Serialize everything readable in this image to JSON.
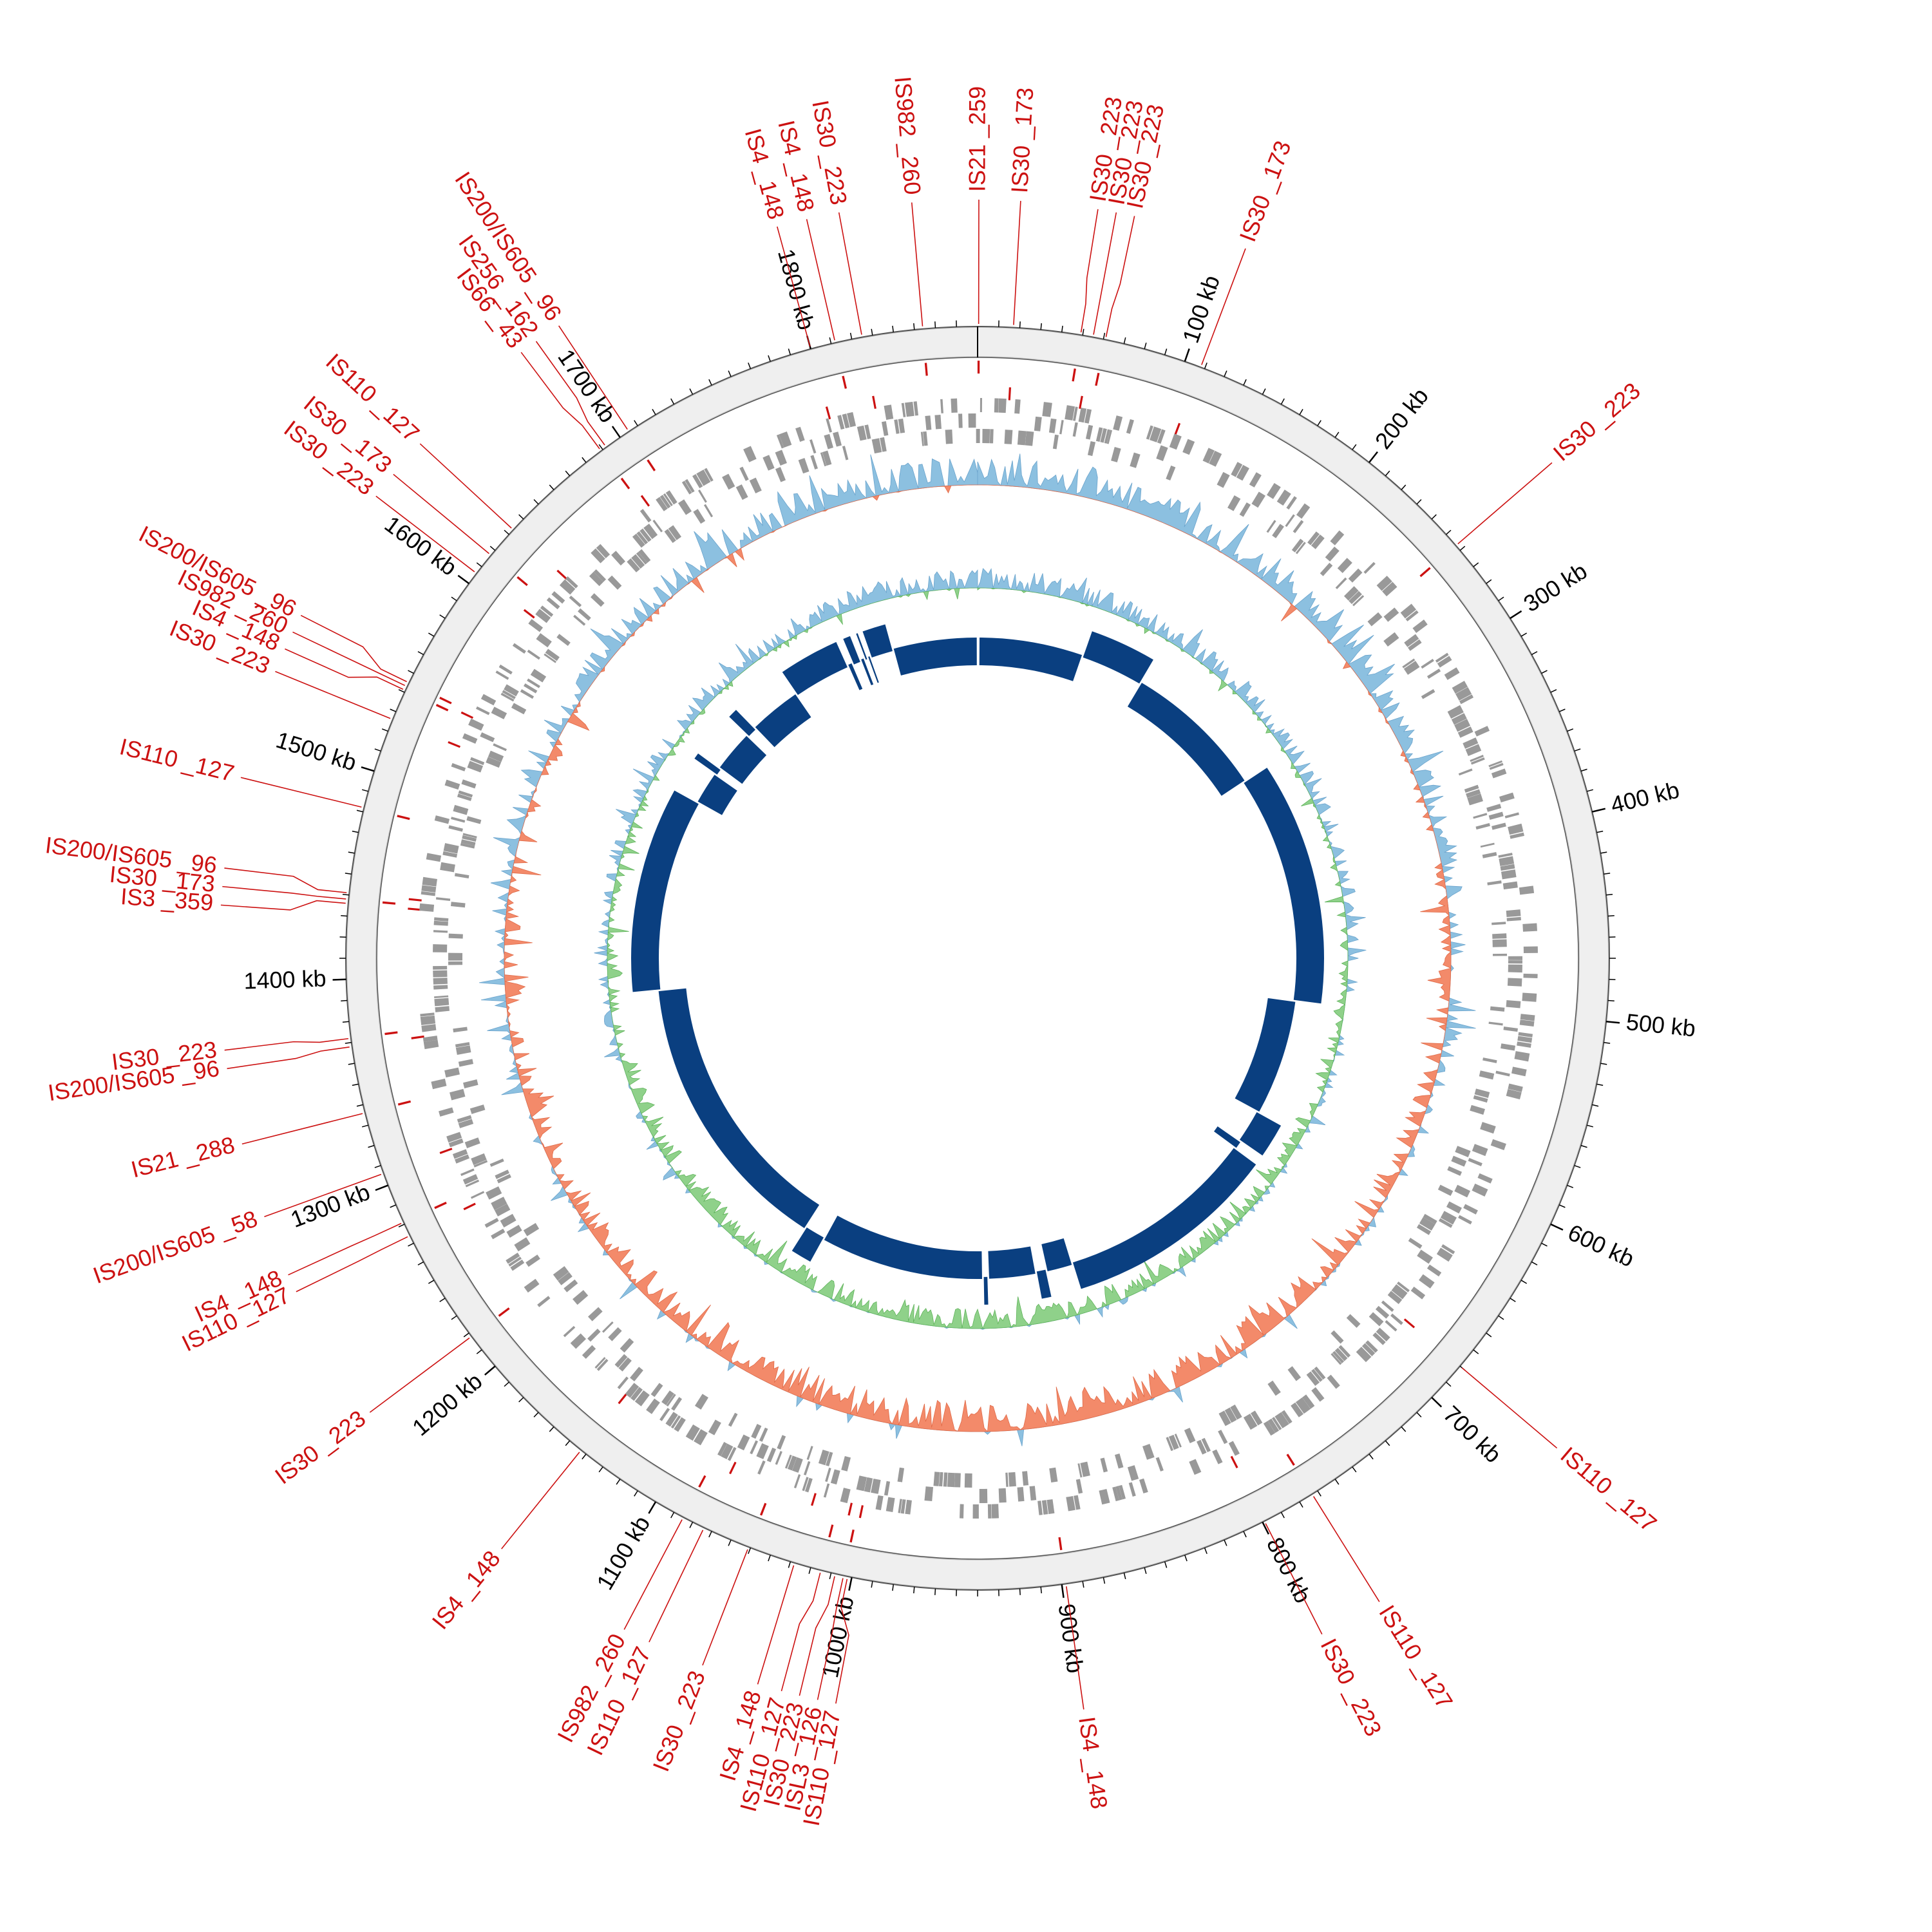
{
  "genome": {
    "length_kb": 1880,
    "ticks": [
      {
        "kb": 100,
        "label": "100 kb"
      },
      {
        "kb": 200,
        "label": "200 kb"
      },
      {
        "kb": 300,
        "label": "300 kb"
      },
      {
        "kb": 400,
        "label": "400 kb"
      },
      {
        "kb": 500,
        "label": "500 kb"
      },
      {
        "kb": 600,
        "label": "600 kb"
      },
      {
        "kb": 700,
        "label": "700 kb"
      },
      {
        "kb": 800,
        "label": "800 kb"
      },
      {
        "kb": 900,
        "label": "900 kb"
      },
      {
        "kb": 1000,
        "label": "1000 kb"
      },
      {
        "kb": 1100,
        "label": "1100 kb"
      },
      {
        "kb": 1200,
        "label": "1200 kb"
      },
      {
        "kb": 1300,
        "label": "1300 kb"
      },
      {
        "kb": 1400,
        "label": "1400 kb"
      },
      {
        "kb": 1500,
        "label": "1500 kb"
      },
      {
        "kb": 1600,
        "label": "1600 kb"
      },
      {
        "kb": 1700,
        "label": "1700 kb"
      },
      {
        "kb": 1800,
        "label": "1800 kb"
      }
    ]
  },
  "colors": {
    "is_element": "#cc1111",
    "gene_track": "#999999",
    "gc_high": "#8cc0e0",
    "gc_low": "#f38a6a",
    "skew_pos": "#8cc0e0",
    "skew_neg": "#8fd18a",
    "scaffold": "#0a3f80",
    "ruler_band": "#efefef"
  },
  "is_elements": [
    {
      "kb": 0.5,
      "label": "IS21 _259"
    },
    {
      "kb": 17,
      "label": "IS30 _173"
    },
    {
      "kb": 49,
      "label": "IS30 _223"
    },
    {
      "kb": 55,
      "label": "IS30 _223"
    },
    {
      "kb": 61,
      "label": "IS30 _223"
    },
    {
      "kb": 108,
      "label": "IS30 _173"
    },
    {
      "kb": 257,
      "label": "IS30 _223"
    },
    {
      "kb": 680,
      "label": "IS110 _127"
    },
    {
      "kb": 773,
      "label": "IS110 _127"
    },
    {
      "kb": 799,
      "label": "IS30 _223"
    },
    {
      "kb": 898,
      "label": "IS4 _148"
    },
    {
      "kb": 1002,
      "label": "IS110 _127"
    },
    {
      "kb": 1004,
      "label": "ISL3 _126"
    },
    {
      "kb": 1008,
      "label": "IS30 _223"
    },
    {
      "kb": 1015,
      "label": "IS110 _127"
    },
    {
      "kb": 1028,
      "label": "IS4 _148"
    },
    {
      "kb": 1051,
      "label": "IS30 _223"
    },
    {
      "kb": 1074,
      "label": "IS110 _127"
    },
    {
      "kb": 1085,
      "label": "IS982 _260"
    },
    {
      "kb": 1143,
      "label": "IS4 _148"
    },
    {
      "kb": 1218,
      "label": "IS30 _223"
    },
    {
      "kb": 1274,
      "label": "IS110 _127"
    },
    {
      "kb": 1281,
      "label": "IS4 _148"
    },
    {
      "kb": 1306,
      "label": "IS200/IS605 _58"
    },
    {
      "kb": 1336,
      "label": "IS21 _288"
    },
    {
      "kb": 1368,
      "label": "IS200/IS605 _96"
    },
    {
      "kb": 1372,
      "label": "IS30 _223"
    },
    {
      "kb": 1436,
      "label": "IS3 _359"
    },
    {
      "kb": 1438,
      "label": "IS30 _173"
    },
    {
      "kb": 1441,
      "label": "IS200/IS605 _96"
    },
    {
      "kb": 1482,
      "label": "IS110 _127"
    },
    {
      "kb": 1526,
      "label": "IS30 _223"
    },
    {
      "kb": 1541,
      "label": "IS4 _148"
    },
    {
      "kb": 1543,
      "label": "IS982 _260"
    },
    {
      "kb": 1545,
      "label": "IS200/IS605 _96"
    },
    {
      "kb": 1606,
      "label": "IS30 _223"
    },
    {
      "kb": 1617,
      "label": "IS30 _173"
    },
    {
      "kb": 1633,
      "label": "IS110 _127"
    },
    {
      "kb": 1689,
      "label": "IS66 _43"
    },
    {
      "kb": 1692,
      "label": "IS256 _162"
    },
    {
      "kb": 1705,
      "label": "IS200/IS605 _96"
    },
    {
      "kb": 1800,
      "label": "IS4 _148"
    },
    {
      "kb": 1812,
      "label": "IS4 _148"
    },
    {
      "kb": 1825,
      "label": "IS30 _223"
    },
    {
      "kb": 1854,
      "label": "IS982 _260"
    }
  ],
  "scaffold_gaps_kb": [
    1,
    100,
    160,
    295,
    510,
    620,
    652,
    660,
    850,
    875,
    885,
    930,
    935,
    1090,
    1110,
    1380,
    1562,
    1593,
    1600,
    1640,
    1650,
    1700,
    1755,
    1760,
    1768,
    1772,
    1775,
    1778,
    1800
  ]
}
